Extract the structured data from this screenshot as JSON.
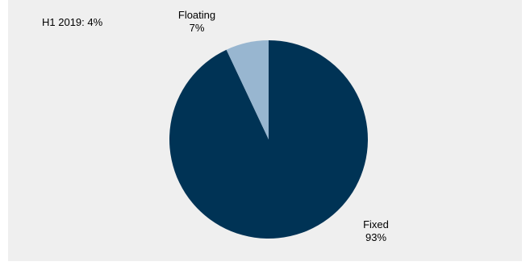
{
  "annotation": "H1 2019: 4%",
  "colors": {
    "background": "#efefef",
    "fixed": "#003355",
    "floating": "#98b6d0"
  },
  "chart_data": {
    "type": "pie",
    "title": "",
    "start_angle_deg": 0,
    "direction": "clockwise",
    "slices": [
      {
        "name": "Fixed",
        "value": 93,
        "label": "93%",
        "color": "#003355"
      },
      {
        "name": "Floating",
        "value": 7,
        "label": "7%",
        "color": "#98b6d0"
      }
    ],
    "legend": "none",
    "annotations": [
      "H1 2019: 4%"
    ]
  }
}
